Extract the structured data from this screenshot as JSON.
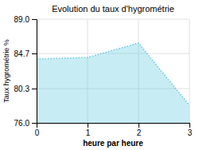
{
  "chart_data": {
    "type": "area",
    "title": "Evolution du taux d'hygrométrie",
    "xlabel": "heure par heure",
    "ylabel": "Taux hygrométrie %",
    "x": [
      0,
      1,
      2,
      3
    ],
    "values": [
      84.0,
      84.2,
      86.0,
      78.2
    ],
    "xlim": [
      0,
      3
    ],
    "ylim": [
      76.0,
      89.0
    ],
    "xticks": [
      0,
      1,
      2,
      3
    ],
    "yticks": [
      {
        "value": 76.0,
        "label": "76.0"
      },
      80.3,
      84.7,
      {
        "value": 89.0,
        "label": "89.0"
      }
    ],
    "color": "#62c8e0",
    "line_style": "dotted",
    "grid": true
  }
}
